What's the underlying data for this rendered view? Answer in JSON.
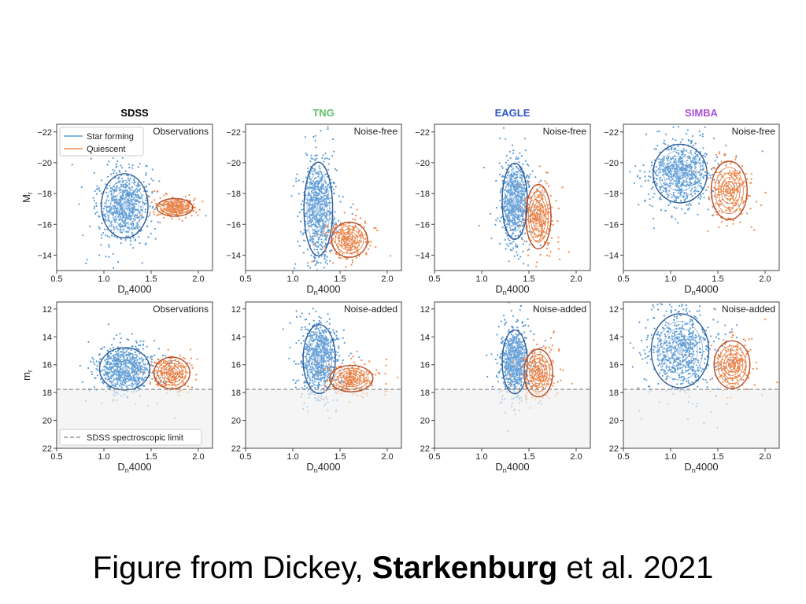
{
  "caption": {
    "text_before": "Figure from Dickey, ",
    "text_bold": "Starkenburg",
    "text_after": " et al. 2021"
  },
  "colors": {
    "star_forming": "#5b9bd5",
    "star_forming_faint": "#b9d3ec",
    "star_forming_contour": "#27538f",
    "quiescent": "#f08a4b",
    "quiescent_faint": "#f7c9a0",
    "quiescent_contour": "#b5431c",
    "limit_line": "#7f7f7f",
    "sdss_title": "#000000",
    "tng_title": "#5fc26a",
    "eagle_title": "#2f55c8",
    "simba_title": "#a84fd6"
  },
  "chart_data": [
    {
      "type": "scatter",
      "column": "SDSS",
      "title": "SDSS",
      "title_color": "#000000",
      "annotation": "Observations",
      "xlabel": "Dn4000",
      "ylabel": "Mr",
      "xlim": [
        0.5,
        2.15
      ],
      "ylim": [
        -13,
        -22.5
      ],
      "y_inverted": true,
      "xticks": [
        "0.5",
        "1.0",
        "1.5",
        "2.0"
      ],
      "yticks": [
        "−22",
        "−20",
        "−18",
        "−16",
        "−14"
      ],
      "legend": {
        "position": "top-left",
        "entries": [
          "Star forming",
          "Quiescent"
        ]
      },
      "series": [
        {
          "name": "Star forming",
          "x_center": 1.22,
          "y_center": -17.2,
          "x_spread": 0.13,
          "y_spread": 1.1
        },
        {
          "name": "Quiescent",
          "x_center": 1.75,
          "y_center": -17.1,
          "x_spread": 0.1,
          "y_spread": 0.3
        }
      ]
    },
    {
      "type": "scatter",
      "column": "TNG",
      "title": "TNG",
      "title_color": "#5fc26a",
      "annotation": "Noise-free",
      "xlabel": "Dn4000",
      "ylabel": "",
      "xlim": [
        0.5,
        2.15
      ],
      "ylim": [
        -13,
        -22.5
      ],
      "y_inverted": true,
      "xticks": [
        "0.5",
        "1.0",
        "1.5",
        "2.0"
      ],
      "yticks": [
        "−22",
        "−20",
        "−18",
        "−16",
        "−14"
      ],
      "series": [
        {
          "name": "Star forming",
          "x_center": 1.27,
          "y_center": -17.0,
          "x_spread": 0.08,
          "y_spread": 1.6
        },
        {
          "name": "Quiescent",
          "x_center": 1.6,
          "y_center": -15.0,
          "x_spread": 0.1,
          "y_spread": 0.6
        }
      ]
    },
    {
      "type": "scatter",
      "column": "EAGLE",
      "title": "EAGLE",
      "title_color": "#2f55c8",
      "annotation": "Noise-free",
      "xlabel": "Dn4000",
      "ylabel": "",
      "xlim": [
        0.5,
        2.15
      ],
      "ylim": [
        -13,
        -22.5
      ],
      "y_inverted": true,
      "xticks": [
        "0.5",
        "1.0",
        "1.5",
        "2.0"
      ],
      "yticks": [
        "−22",
        "−20",
        "−18",
        "−16",
        "−14"
      ],
      "series": [
        {
          "name": "Star forming",
          "x_center": 1.35,
          "y_center": -17.5,
          "x_spread": 0.07,
          "y_spread": 1.3
        },
        {
          "name": "Quiescent",
          "x_center": 1.6,
          "y_center": -16.5,
          "x_spread": 0.07,
          "y_spread": 1.1
        }
      ]
    },
    {
      "type": "scatter",
      "column": "SIMBA",
      "title": "SIMBA",
      "title_color": "#a84fd6",
      "annotation": "Noise-free",
      "xlabel": "Dn4000",
      "ylabel": "",
      "xlim": [
        0.5,
        2.15
      ],
      "ylim": [
        -13,
        -22.5
      ],
      "y_inverted": true,
      "xticks": [
        "0.5",
        "1.0",
        "1.5",
        "2.0"
      ],
      "yticks": [
        "−22",
        "−20",
        "−18",
        "−16",
        "−14"
      ],
      "series": [
        {
          "name": "Star forming",
          "x_center": 1.1,
          "y_center": -19.3,
          "x_spread": 0.15,
          "y_spread": 1.0
        },
        {
          "name": "Quiescent",
          "x_center": 1.62,
          "y_center": -18.2,
          "x_spread": 0.1,
          "y_spread": 1.0
        }
      ]
    },
    {
      "type": "scatter",
      "column": "SDSS",
      "annotation": "Observations",
      "xlabel": "Dn4000",
      "ylabel": "mr",
      "xlim": [
        0.5,
        2.15
      ],
      "ylim": [
        22,
        11.5
      ],
      "y_inverted": true,
      "xticks": [
        "0.5",
        "1.0",
        "1.5",
        "2.0"
      ],
      "yticks": [
        "12",
        "14",
        "16",
        "18",
        "20",
        "22"
      ],
      "spectroscopic_limit": 17.77,
      "legend": {
        "position": "bottom-left",
        "entries": [
          "SDSS spectroscopic limit"
        ]
      },
      "series": [
        {
          "name": "Star forming",
          "x_center": 1.22,
          "y_center": 16.3,
          "x_spread": 0.14,
          "y_spread": 0.8
        },
        {
          "name": "Quiescent",
          "x_center": 1.72,
          "y_center": 16.6,
          "x_spread": 0.1,
          "y_spread": 0.6
        }
      ]
    },
    {
      "type": "scatter",
      "column": "TNG",
      "annotation": "Noise-added",
      "xlabel": "Dn4000",
      "ylabel": "",
      "xlim": [
        0.5,
        2.15
      ],
      "ylim": [
        22,
        11.5
      ],
      "y_inverted": true,
      "xticks": [
        "0.5",
        "1.0",
        "1.5",
        "2.0"
      ],
      "yticks": [
        "12",
        "14",
        "16",
        "18",
        "20",
        "22"
      ],
      "spectroscopic_limit": 17.77,
      "series": [
        {
          "name": "Star forming",
          "x_center": 1.28,
          "y_center": 15.6,
          "x_spread": 0.09,
          "y_spread": 1.3
        },
        {
          "name": "Quiescent",
          "x_center": 1.62,
          "y_center": 17.0,
          "x_spread": 0.12,
          "y_spread": 0.5
        }
      ]
    },
    {
      "type": "scatter",
      "column": "EAGLE",
      "annotation": "Noise-added",
      "xlabel": "Dn4000",
      "ylabel": "",
      "xlim": [
        0.5,
        2.15
      ],
      "ylim": [
        22,
        11.5
      ],
      "y_inverted": true,
      "xticks": [
        "0.5",
        "1.0",
        "1.5",
        "2.0"
      ],
      "yticks": [
        "12",
        "14",
        "16",
        "18",
        "20",
        "22"
      ],
      "spectroscopic_limit": 17.77,
      "series": [
        {
          "name": "Star forming",
          "x_center": 1.35,
          "y_center": 15.8,
          "x_spread": 0.07,
          "y_spread": 1.2
        },
        {
          "name": "Quiescent",
          "x_center": 1.6,
          "y_center": 16.6,
          "x_spread": 0.08,
          "y_spread": 0.9
        }
      ]
    },
    {
      "type": "scatter",
      "column": "SIMBA",
      "annotation": "Noise-added",
      "xlabel": "Dn4000",
      "ylabel": "",
      "xlim": [
        0.5,
        2.15
      ],
      "ylim": [
        22,
        11.5
      ],
      "y_inverted": true,
      "xticks": [
        "0.5",
        "1.0",
        "1.5",
        "2.0"
      ],
      "yticks": [
        "12",
        "14",
        "16",
        "18",
        "20",
        "22"
      ],
      "spectroscopic_limit": 17.77,
      "series": [
        {
          "name": "Star forming",
          "x_center": 1.1,
          "y_center": 15.0,
          "x_spread": 0.16,
          "y_spread": 1.4
        },
        {
          "name": "Quiescent",
          "x_center": 1.65,
          "y_center": 16.0,
          "x_spread": 0.1,
          "y_spread": 0.9
        }
      ]
    }
  ]
}
